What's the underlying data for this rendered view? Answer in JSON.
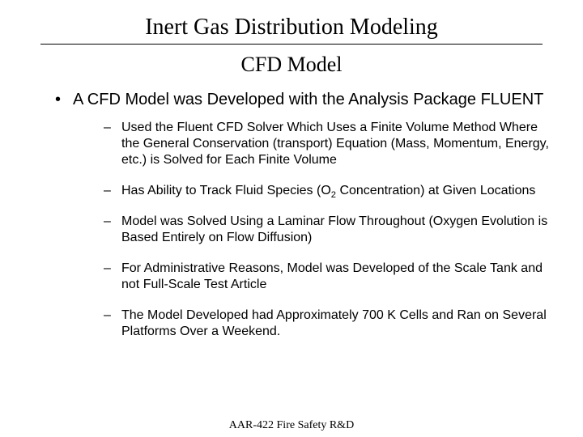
{
  "colors": {
    "background": "#ffffff",
    "text": "#000000",
    "rule": "#000000"
  },
  "fonts": {
    "title_family": "Times New Roman",
    "body_family": "Arial",
    "title_size_pt": 28,
    "subtitle_size_pt": 26,
    "level1_size_pt": 20,
    "level2_size_pt": 16,
    "footer_size_pt": 14
  },
  "title": "Inert Gas Distribution Modeling",
  "subtitle": "CFD Model",
  "main_bullet": "A CFD Model was Developed with the Analysis Package FLUENT",
  "sub_bullets": {
    "b1": "Used the Fluent CFD Solver Which Uses a Finite Volume Method Where the General Conservation (transport) Equation (Mass, Momentum, Energy, etc.) is Solved for Each Finite Volume",
    "b2_pre": "Has Ability to Track Fluid Species (O",
    "b2_sub": "2",
    "b2_post": " Concentration) at Given Locations",
    "b3": "Model was Solved Using a Laminar Flow Throughout (Oxygen Evolution is Based Entirely on Flow Diffusion)",
    "b4": "For Administrative Reasons, Model was Developed of the Scale Tank and not Full-Scale Test Article",
    "b5": "The Model Developed had Approximately 700 K Cells and Ran on Several Platforms Over a Weekend."
  },
  "footer": "AAR-422 Fire Safety R&D"
}
